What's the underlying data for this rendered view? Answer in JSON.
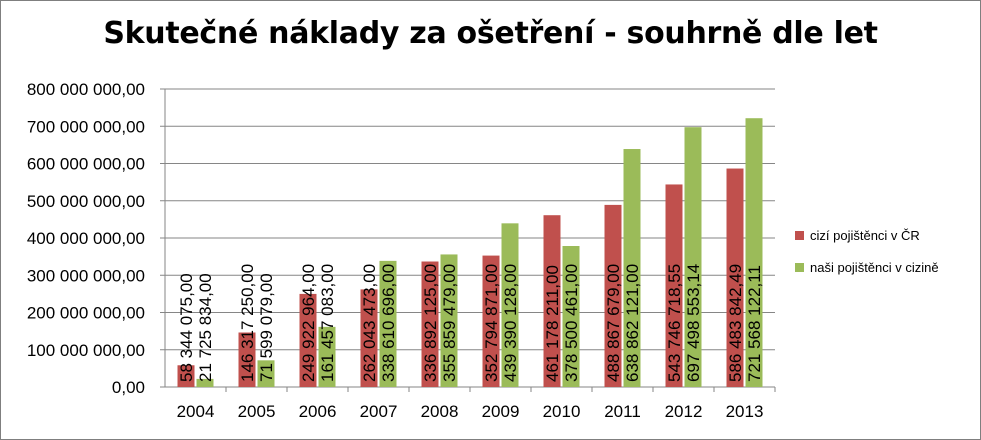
{
  "chart_data": {
    "type": "bar",
    "title": "Skutečné náklady za ošetření - souhrně dle let",
    "xlabel": "",
    "ylabel": "",
    "ylim": [
      0,
      800000000
    ],
    "yticks": [
      0,
      100000000,
      200000000,
      300000000,
      400000000,
      500000000,
      600000000,
      700000000,
      800000000
    ],
    "ytick_labels": [
      "0,00",
      "100 000 000,00",
      "200 000 000,00",
      "300 000 000,00",
      "400 000 000,00",
      "500 000 000,00",
      "600 000 000,00",
      "700 000 000,00",
      "800 000 000,00"
    ],
    "grid": true,
    "legend_position": "right",
    "categories": [
      "2004",
      "2005",
      "2006",
      "2007",
      "2008",
      "2009",
      "2010",
      "2011",
      "2012",
      "2013"
    ],
    "series": [
      {
        "name": "cizí pojištěnci v ČR",
        "color": "#c0504d",
        "values": [
          58344075.0,
          146317250.0,
          249922964.0,
          262043473.0,
          336892125.0,
          352794871.0,
          461178211.0,
          488867679.0,
          543746718.55,
          586483842.49
        ],
        "labels": [
          "58 344 075,00",
          "146 317 250,00",
          "249 922 964,00",
          "262 043 473,00",
          "336 892 125,00",
          "352 794 871,00",
          "461 178 211,00",
          "488 867 679,00",
          "543 746 718,55",
          "586 483 842,49"
        ]
      },
      {
        "name": "naši pojištěnci v cizině",
        "color": "#9bbb59",
        "values": [
          21725834.0,
          71599079.0,
          161457083.0,
          338610696.0,
          355859479.0,
          439390128.0,
          378500461.0,
          638862121.0,
          697498553.14,
          721568122.11
        ],
        "labels": [
          "21 725 834,00",
          "71 599 079,00",
          "161 457 083,00",
          "338 610 696,00",
          "355 859 479,00",
          "439 390 128,00",
          "378 500 461,00",
          "638 862 121,00",
          "697 498 553,14",
          "721 568 122,11"
        ]
      }
    ]
  }
}
